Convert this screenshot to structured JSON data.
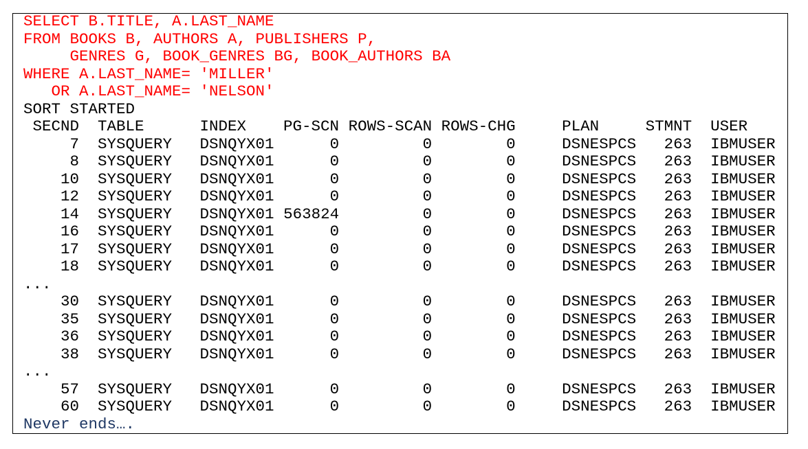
{
  "query": {
    "lines": [
      "SELECT B.TITLE, A.LAST_NAME",
      "FROM BOOKS B, AUTHORS A, PUBLISHERS P,",
      "     GENRES G, BOOK_GENRES BG, BOOK_AUTHORS BA",
      "WHERE A.LAST_NAME= 'MILLER'",
      "   OR A.LAST_NAME= 'NELSON'"
    ],
    "color": "#ff0000"
  },
  "status": "SORT STARTED",
  "table": {
    "headers": [
      "SECND",
      "TABLE",
      "INDEX",
      "PG-SCN",
      "ROWS-SCAN",
      "ROWS-CHG",
      "PLAN",
      "STMNT",
      "USER"
    ],
    "rows": [
      [
        "7",
        "SYSQUERY",
        "DSNQYX01",
        "0",
        "0",
        "0",
        "DSNESPCS",
        "263",
        "IBMUSER"
      ],
      [
        "8",
        "SYSQUERY",
        "DSNQYX01",
        "0",
        "0",
        "0",
        "DSNESPCS",
        "263",
        "IBMUSER"
      ],
      [
        "10",
        "SYSQUERY",
        "DSNQYX01",
        "0",
        "0",
        "0",
        "DSNESPCS",
        "263",
        "IBMUSER"
      ],
      [
        "12",
        "SYSQUERY",
        "DSNQYX01",
        "0",
        "0",
        "0",
        "DSNESPCS",
        "263",
        "IBMUSER"
      ],
      [
        "14",
        "SYSQUERY",
        "DSNQYX01",
        "563824",
        "0",
        "0",
        "DSNESPCS",
        "263",
        "IBMUSER"
      ],
      [
        "16",
        "SYSQUERY",
        "DSNQYX01",
        "0",
        "0",
        "0",
        "DSNESPCS",
        "263",
        "IBMUSER"
      ],
      [
        "17",
        "SYSQUERY",
        "DSNQYX01",
        "0",
        "0",
        "0",
        "DSNESPCS",
        "263",
        "IBMUSER"
      ],
      [
        "18",
        "SYSQUERY",
        "DSNQYX01",
        "0",
        "0",
        "0",
        "DSNESPCS",
        "263",
        "IBMUSER"
      ],
      "...",
      [
        "30",
        "SYSQUERY",
        "DSNQYX01",
        "0",
        "0",
        "0",
        "DSNESPCS",
        "263",
        "IBMUSER"
      ],
      [
        "35",
        "SYSQUERY",
        "DSNQYX01",
        "0",
        "0",
        "0",
        "DSNESPCS",
        "263",
        "IBMUSER"
      ],
      [
        "36",
        "SYSQUERY",
        "DSNQYX01",
        "0",
        "0",
        "0",
        "DSNESPCS",
        "263",
        "IBMUSER"
      ],
      [
        "38",
        "SYSQUERY",
        "DSNQYX01",
        "0",
        "0",
        "0",
        "DSNESPCS",
        "263",
        "IBMUSER"
      ],
      "...",
      [
        "57",
        "SYSQUERY",
        "DSNQYX01",
        "0",
        "0",
        "0",
        "DSNESPCS",
        "263",
        "IBMUSER"
      ],
      [
        "60",
        "SYSQUERY",
        "DSNQYX01",
        "0",
        "0",
        "0",
        "DSNESPCS",
        "263",
        "IBMUSER"
      ]
    ]
  },
  "footer": "Never ends….",
  "footer_color": "#1f3864"
}
